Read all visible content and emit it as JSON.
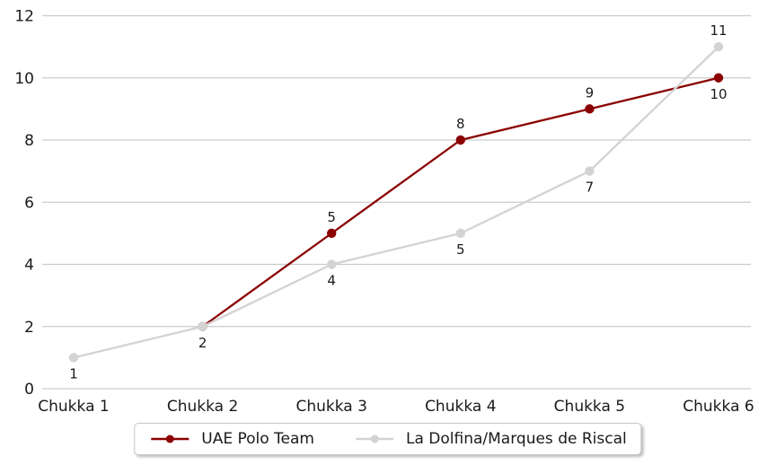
{
  "chart_data": {
    "type": "line",
    "title": "",
    "xlabel": "",
    "ylabel": "",
    "categories": [
      "Chukka 1",
      "Chukka 2",
      "Chukka 3",
      "Chukka 4",
      "Chukka 5",
      "Chukka 6"
    ],
    "series": [
      {
        "name": "UAE Polo Team",
        "color": "#8b0000",
        "values": [
          null,
          2,
          5,
          8,
          9,
          10
        ],
        "point_labels": [
          null,
          null,
          "5",
          "8",
          "9",
          "10"
        ],
        "label_positions": [
          null,
          null,
          "above",
          "above",
          "above",
          "below"
        ]
      },
      {
        "name": "La Dolfina/Marques de Riscal",
        "color": "#d3d3d3",
        "values": [
          1,
          2,
          4,
          5,
          7,
          11
        ],
        "point_labels": [
          "1",
          "2",
          "4",
          "5",
          "7",
          "11"
        ],
        "label_positions": [
          "below",
          "below",
          "below",
          "below",
          "below",
          "above"
        ]
      }
    ],
    "ylim": [
      0,
      12
    ],
    "yticks": [
      0,
      2,
      4,
      6,
      8,
      10,
      12
    ],
    "grid": "horizontal",
    "legend_position": "bottom-center"
  },
  "colors": {
    "background": "#ffffff",
    "gridline": "#cccccc",
    "tick_text": "#1a1a1a",
    "data_label_text": "#1a1a1a",
    "legend_border": "#c8c8c8",
    "legend_background": "#ffffff"
  },
  "legend": {
    "items": [
      {
        "label": "UAE Polo Team",
        "color": "#8b0000"
      },
      {
        "label": "La Dolfina/Marques de Riscal",
        "color": "#d3d3d3"
      }
    ]
  }
}
